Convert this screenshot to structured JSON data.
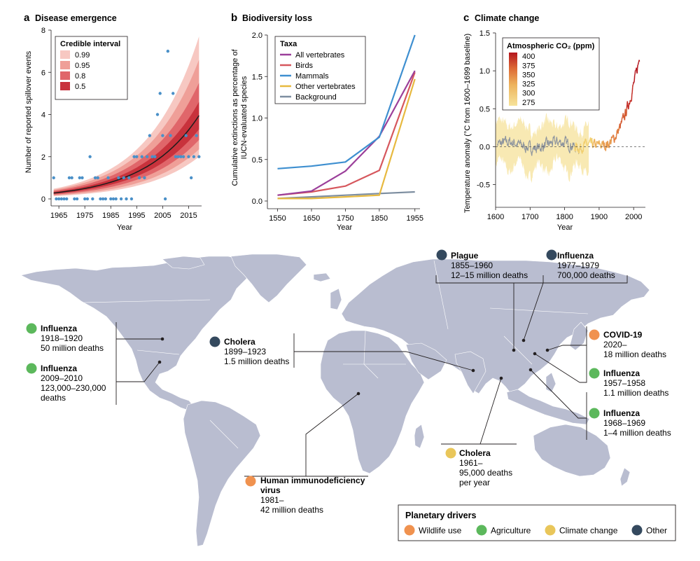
{
  "chart_data": [
    {
      "panel": "a",
      "type": "scatter",
      "title": "Disease emergence",
      "xlabel": "Year",
      "ylabel": "Number of reported spillover events",
      "xlim": [
        1962,
        2020
      ],
      "ylim": [
        0,
        8
      ],
      "xticks": [
        1965,
        1975,
        1985,
        1995,
        2005,
        2015
      ],
      "yticks": [
        0,
        2,
        4,
        6,
        8
      ],
      "legend": {
        "title": "Credible interval",
        "placement": "top-left",
        "items": [
          {
            "label": "0.99",
            "color": "#f7c8c2"
          },
          {
            "label": "0.95",
            "color": "#ef9f98"
          },
          {
            "label": "0.8",
            "color": "#e0666a"
          },
          {
            "label": "0.5",
            "color": "#c8323c"
          }
        ]
      },
      "points": [
        [
          1963,
          1
        ],
        [
          1964,
          0
        ],
        [
          1965,
          0
        ],
        [
          1966,
          0
        ],
        [
          1967,
          0
        ],
        [
          1968,
          0
        ],
        [
          1969,
          1
        ],
        [
          1970,
          1
        ],
        [
          1971,
          0
        ],
        [
          1972,
          0
        ],
        [
          1973,
          1
        ],
        [
          1974,
          1
        ],
        [
          1975,
          0
        ],
        [
          1976,
          0
        ],
        [
          1977,
          2
        ],
        [
          1978,
          0
        ],
        [
          1979,
          1
        ],
        [
          1980,
          1
        ],
        [
          1981,
          0
        ],
        [
          1982,
          0
        ],
        [
          1983,
          0
        ],
        [
          1984,
          1
        ],
        [
          1985,
          0
        ],
        [
          1986,
          0
        ],
        [
          1987,
          0
        ],
        [
          1988,
          1
        ],
        [
          1989,
          0
        ],
        [
          1990,
          1
        ],
        [
          1991,
          0
        ],
        [
          1992,
          1
        ],
        [
          1993,
          0
        ],
        [
          1994,
          2
        ],
        [
          1995,
          2
        ],
        [
          1996,
          1
        ],
        [
          1997,
          2
        ],
        [
          1998,
          1
        ],
        [
          1999,
          2
        ],
        [
          2000,
          3
        ],
        [
          2001,
          2
        ],
        [
          2002,
          2
        ],
        [
          2003,
          4
        ],
        [
          2004,
          5
        ],
        [
          2005,
          3
        ],
        [
          2006,
          0
        ],
        [
          2007,
          7
        ],
        [
          2008,
          3
        ],
        [
          2009,
          5
        ],
        [
          2010,
          2
        ],
        [
          2011,
          2
        ],
        [
          2012,
          2
        ],
        [
          2013,
          2
        ],
        [
          2014,
          3
        ],
        [
          2015,
          2
        ],
        [
          2016,
          1
        ],
        [
          2017,
          2
        ],
        [
          2018,
          3
        ],
        [
          2019,
          2
        ]
      ],
      "trend": {
        "intercept_year": 1963,
        "start": 0.28,
        "end_year": 2019,
        "end": 3.95
      },
      "bands": [
        {
          "ci": "0.99",
          "start": [
            0.13,
            0.48
          ],
          "end": [
            2.0,
            7.7
          ]
        },
        {
          "ci": "0.95",
          "start": [
            0.16,
            0.43
          ],
          "end": [
            2.35,
            6.6
          ]
        },
        {
          "ci": "0.8",
          "start": [
            0.2,
            0.38
          ],
          "end": [
            2.8,
            5.5
          ]
        },
        {
          "ci": "0.5",
          "start": [
            0.24,
            0.33
          ],
          "end": [
            3.3,
            4.6
          ]
        }
      ]
    },
    {
      "panel": "b",
      "type": "line",
      "title": "Biodiversity loss",
      "xlabel": "Year",
      "ylabel": "Cumulative extinctions as percentage of IUCN-evaluated species",
      "x": [
        1550,
        1650,
        1750,
        1850,
        1955
      ],
      "xlim": [
        1520,
        1970
      ],
      "ylim": [
        0,
        2.0
      ],
      "yticks": [
        0.0,
        0.5,
        1.0,
        1.5,
        2.0
      ],
      "legend": {
        "title": "Taxa",
        "placement": "top-left"
      },
      "series": [
        {
          "name": "All vertebrates",
          "color": "#9b3f9a",
          "values": [
            0.07,
            0.12,
            0.36,
            0.78,
            1.57
          ]
        },
        {
          "name": "Birds",
          "color": "#d6575d",
          "values": [
            0.07,
            0.11,
            0.18,
            0.37,
            1.55
          ]
        },
        {
          "name": "Mammals",
          "color": "#3e8fd0",
          "values": [
            0.39,
            0.42,
            0.47,
            0.77,
            2.0
          ]
        },
        {
          "name": "Other vertebrates",
          "color": "#e7b93f",
          "values": [
            0.03,
            0.03,
            0.05,
            0.07,
            1.47
          ]
        },
        {
          "name": "Background",
          "color": "#7d8ea0",
          "values": [
            0.03,
            0.05,
            0.07,
            0.09,
            0.11
          ]
        }
      ]
    },
    {
      "panel": "c",
      "type": "line",
      "title": "Climate change",
      "xlabel": "Year",
      "ylabel": "Temperature anomaly (°C from 1600–1699 baseline)",
      "xlim": [
        1600,
        2030
      ],
      "xticks": [
        1600,
        1700,
        1800,
        1900,
        2000
      ],
      "ylim": [
        -0.8,
        1.5
      ],
      "yticks": [
        -0.5,
        0.0,
        0.5,
        1.0,
        1.5
      ],
      "baseline": 0.0,
      "legend": {
        "title": "Atmospheric CO₂ (ppm)",
        "placement": "top-left",
        "ticks": [
          275,
          300,
          325,
          350,
          375,
          400
        ],
        "range": [
          265,
          410
        ]
      }
    }
  ],
  "map": {
    "annotations": [
      {
        "id": "plague",
        "driver": "other",
        "title": "Plague",
        "lines": [
          "1855–1960",
          "12–15 million deaths"
        ]
      },
      {
        "id": "influenza-1977",
        "driver": "other",
        "title": "Influenza",
        "lines": [
          "1977–1979",
          "700,000 deaths"
        ]
      },
      {
        "id": "influenza-1918",
        "driver": "agriculture",
        "title": "Influenza",
        "lines": [
          "1918–1920",
          "50 million deaths"
        ]
      },
      {
        "id": "influenza-2009",
        "driver": "agriculture",
        "title": "Influenza",
        "lines": [
          "2009–2010",
          "123,000–230,000",
          "deaths"
        ]
      },
      {
        "id": "cholera-1899",
        "driver": "other",
        "title": "Cholera",
        "lines": [
          "1899–1923",
          "1.5 million deaths"
        ]
      },
      {
        "id": "covid",
        "driver": "wildlife",
        "title": "COVID-19",
        "lines": [
          "2020–",
          "18 million deaths"
        ]
      },
      {
        "id": "influenza-1957",
        "driver": "agriculture",
        "title": "Influenza",
        "lines": [
          "1957–1958",
          "1.1 million deaths"
        ]
      },
      {
        "id": "influenza-1968",
        "driver": "agriculture",
        "title": "Influenza",
        "lines": [
          "1968–1969",
          "1–4 million deaths"
        ]
      },
      {
        "id": "cholera-1961",
        "driver": "climate",
        "title": "Cholera",
        "lines": [
          "1961–",
          "95,000 deaths",
          "per year"
        ]
      },
      {
        "id": "hiv",
        "driver": "wildlife",
        "title": "Human immunodeficiency",
        "title2": "virus",
        "lines": [
          "1981–",
          "42 million deaths"
        ]
      }
    ],
    "legend": {
      "title": "Planetary drivers",
      "items": [
        {
          "key": "wildlife",
          "label": "Wildlife use",
          "color": "#f0924f"
        },
        {
          "key": "agriculture",
          "label": "Agriculture",
          "color": "#5cb85c"
        },
        {
          "key": "climate",
          "label": "Climate change",
          "color": "#e9c65a"
        },
        {
          "key": "other",
          "label": "Other",
          "color": "#34495e"
        }
      ]
    }
  }
}
